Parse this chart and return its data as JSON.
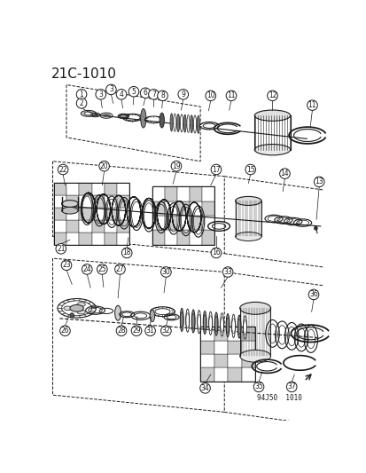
{
  "title": "21C-1010",
  "title_fontsize": 11,
  "bg_color": "#ffffff",
  "line_color": "#1a1a1a",
  "copyright_text": "94J50  1010",
  "figsize": [
    4.14,
    5.33
  ],
  "dpi": 100
}
